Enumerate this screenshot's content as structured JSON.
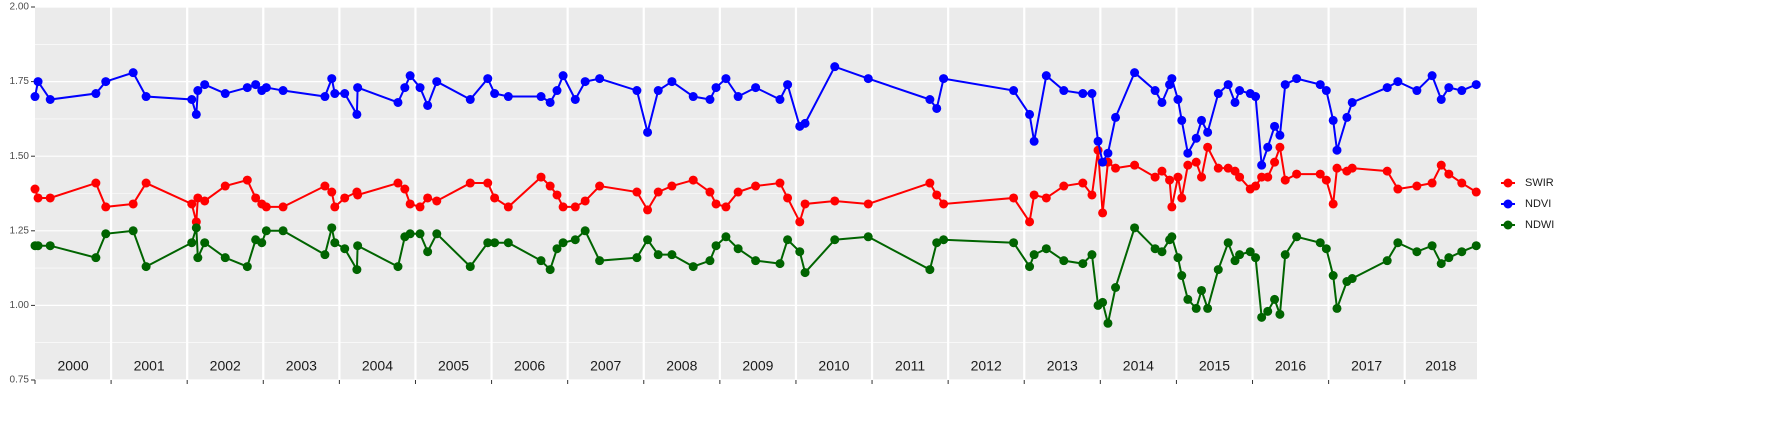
{
  "chart_data": {
    "type": "line",
    "panels": [
      "2000",
      "2001",
      "2002",
      "2003",
      "2004",
      "2005",
      "2006",
      "2007",
      "2008",
      "2009",
      "2010",
      "2011",
      "2012",
      "2013",
      "2014",
      "2015",
      "2016",
      "2017",
      "2018"
    ],
    "xlim": [
      2000,
      2018.95
    ],
    "ylim": [
      0.75,
      2.0
    ],
    "yticks": [
      {
        "value": 0.75,
        "label": "0.75"
      },
      {
        "value": 1.0,
        "label": "1.00"
      },
      {
        "value": 1.25,
        "label": "1.25"
      },
      {
        "value": 1.5,
        "label": "1.50"
      },
      {
        "value": 1.75,
        "label": "1.75"
      },
      {
        "value": 2.0,
        "label": "2.00"
      }
    ],
    "grid": true,
    "legend": "right",
    "x": [
      2000.0,
      2000.04,
      2000.2,
      2000.8,
      2000.93,
      2001.29,
      2001.46,
      2002.06,
      2002.12,
      2002.14,
      2002.23,
      2002.5,
      2002.79,
      2002.9,
      2002.98,
      2003.04,
      2003.26,
      2003.81,
      2003.9,
      2003.94,
      2004.07,
      2004.23,
      2004.24,
      2004.77,
      2004.86,
      2004.93,
      2005.06,
      2005.16,
      2005.28,
      2005.72,
      2005.95,
      2006.04,
      2006.22,
      2006.65,
      2006.77,
      2006.86,
      2006.94,
      2007.1,
      2007.23,
      2007.42,
      2007.91,
      2008.05,
      2008.19,
      2008.37,
      2008.65,
      2008.87,
      2008.95,
      2009.08,
      2009.24,
      2009.47,
      2009.79,
      2009.89,
      2010.05,
      2010.12,
      2010.51,
      2010.95,
      2011.76,
      2011.85,
      2011.94,
      2012.86,
      2013.07,
      2013.13,
      2013.29,
      2013.52,
      2013.77,
      2013.89,
      2013.97,
      2014.03,
      2014.1,
      2014.2,
      2014.45,
      2014.72,
      2014.81,
      2014.91,
      2014.94,
      2015.02,
      2015.07,
      2015.15,
      2015.26,
      2015.33,
      2015.41,
      2015.55,
      2015.68,
      2015.77,
      2015.83,
      2015.97,
      2016.04,
      2016.12,
      2016.2,
      2016.29,
      2016.36,
      2016.43,
      2016.58,
      2016.89,
      2016.97,
      2017.06,
      2017.11,
      2017.24,
      2017.31,
      2017.77,
      2017.91,
      2018.16,
      2018.36,
      2018.48,
      2018.58,
      2018.75,
      2018.94
    ],
    "series": [
      {
        "name": "SWIR",
        "color": "#ff0000",
        "values": [
          1.39,
          1.36,
          1.36,
          1.41,
          1.33,
          1.34,
          1.41,
          1.34,
          1.28,
          1.36,
          1.35,
          1.4,
          1.42,
          1.36,
          1.34,
          1.33,
          1.33,
          1.4,
          1.38,
          1.33,
          1.36,
          1.38,
          1.37,
          1.41,
          1.39,
          1.34,
          1.33,
          1.36,
          1.35,
          1.41,
          1.41,
          1.36,
          1.33,
          1.43,
          1.4,
          1.37,
          1.33,
          1.33,
          1.35,
          1.4,
          1.38,
          1.32,
          1.38,
          1.4,
          1.42,
          1.38,
          1.34,
          1.33,
          1.38,
          1.4,
          1.41,
          1.36,
          1.28,
          1.34,
          1.35,
          1.34,
          1.41,
          1.37,
          1.34,
          1.36,
          1.28,
          1.37,
          1.36,
          1.4,
          1.41,
          1.37,
          1.52,
          1.31,
          1.48,
          1.46,
          1.47,
          1.43,
          1.45,
          1.42,
          1.33,
          1.43,
          1.36,
          1.47,
          1.48,
          1.43,
          1.53,
          1.46,
          1.46,
          1.45,
          1.43,
          1.39,
          1.4,
          1.43,
          1.43,
          1.48,
          1.53,
          1.42,
          1.44,
          1.44,
          1.42,
          1.34,
          1.46,
          1.45,
          1.46,
          1.45,
          1.39,
          1.4,
          1.41,
          1.47,
          1.44,
          1.41,
          1.38
        ]
      },
      {
        "name": "NDVI",
        "color": "#0000ff",
        "values": [
          1.7,
          1.75,
          1.69,
          1.71,
          1.75,
          1.78,
          1.7,
          1.69,
          1.64,
          1.72,
          1.74,
          1.71,
          1.73,
          1.74,
          1.72,
          1.73,
          1.72,
          1.7,
          1.76,
          1.71,
          1.71,
          1.64,
          1.73,
          1.68,
          1.73,
          1.77,
          1.73,
          1.67,
          1.75,
          1.69,
          1.76,
          1.71,
          1.7,
          1.7,
          1.68,
          1.72,
          1.77,
          1.69,
          1.75,
          1.76,
          1.72,
          1.58,
          1.72,
          1.75,
          1.7,
          1.69,
          1.73,
          1.76,
          1.7,
          1.73,
          1.69,
          1.74,
          1.6,
          1.61,
          1.8,
          1.76,
          1.69,
          1.66,
          1.76,
          1.72,
          1.64,
          1.55,
          1.77,
          1.72,
          1.71,
          1.71,
          1.55,
          1.48,
          1.51,
          1.63,
          1.78,
          1.72,
          1.68,
          1.74,
          1.76,
          1.69,
          1.62,
          1.51,
          1.56,
          1.62,
          1.58,
          1.71,
          1.74,
          1.68,
          1.72,
          1.71,
          1.7,
          1.47,
          1.53,
          1.6,
          1.57,
          1.74,
          1.76,
          1.74,
          1.72,
          1.62,
          1.52,
          1.63,
          1.68,
          1.73,
          1.75,
          1.72,
          1.77,
          1.69,
          1.73,
          1.72,
          1.74
        ]
      },
      {
        "name": "NDWI",
        "color": "#006400",
        "values": [
          1.2,
          1.2,
          1.2,
          1.16,
          1.24,
          1.25,
          1.13,
          1.21,
          1.26,
          1.16,
          1.21,
          1.16,
          1.13,
          1.22,
          1.21,
          1.25,
          1.25,
          1.17,
          1.26,
          1.21,
          1.19,
          1.12,
          1.2,
          1.13,
          1.23,
          1.24,
          1.24,
          1.18,
          1.24,
          1.13,
          1.21,
          1.21,
          1.21,
          1.15,
          1.12,
          1.19,
          1.21,
          1.22,
          1.25,
          1.15,
          1.16,
          1.22,
          1.17,
          1.17,
          1.13,
          1.15,
          1.2,
          1.23,
          1.19,
          1.15,
          1.14,
          1.22,
          1.18,
          1.11,
          1.22,
          1.23,
          1.12,
          1.21,
          1.22,
          1.21,
          1.13,
          1.17,
          1.19,
          1.15,
          1.14,
          1.17,
          1.0,
          1.01,
          0.94,
          1.06,
          1.26,
          1.19,
          1.18,
          1.22,
          1.23,
          1.16,
          1.1,
          1.02,
          0.99,
          1.05,
          0.99,
          1.12,
          1.21,
          1.15,
          1.17,
          1.18,
          1.16,
          0.96,
          0.98,
          1.02,
          0.97,
          1.17,
          1.23,
          1.21,
          1.19,
          1.1,
          0.99,
          1.08,
          1.09,
          1.15,
          1.21,
          1.18,
          1.2,
          1.14,
          1.16,
          1.18,
          1.2
        ]
      }
    ]
  }
}
